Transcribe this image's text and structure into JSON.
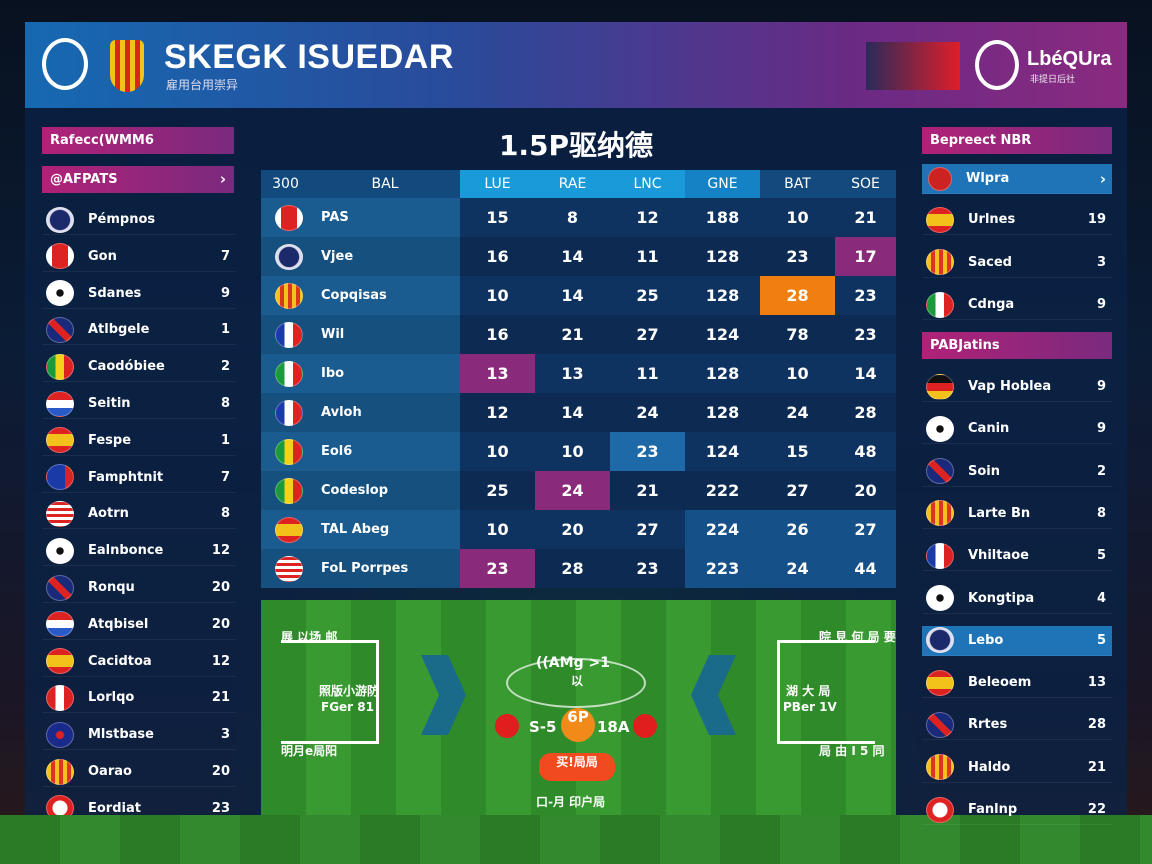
{
  "header": {
    "title": "SKEGK ISUEDAR",
    "subtitle": "雇用台用崇异",
    "league_logo_text": "LbéQUra",
    "league_logo_sub": "非提日后社"
  },
  "left": {
    "section_title": "Rafecc(WMM6",
    "menu_label": "@AFPATS",
    "items": [
      {
        "name": "Pémpnos",
        "count": "",
        "icon": "ball-blue"
      },
      {
        "name": "Gon",
        "count": "7",
        "icon": "crest-red"
      },
      {
        "name": "Sdanes",
        "count": "9",
        "icon": "ball"
      },
      {
        "name": "Atlbgele",
        "count": "1",
        "icon": "uk"
      },
      {
        "name": "Caodóbiee",
        "count": "2",
        "icon": "senegal"
      },
      {
        "name": "Seitin",
        "count": "8",
        "icon": "paraguay"
      },
      {
        "name": "Fespe",
        "count": "1",
        "icon": "spain"
      },
      {
        "name": "Famphtnit",
        "count": "7",
        "icon": "eu"
      },
      {
        "name": "Aotrn",
        "count": "8",
        "icon": "usa"
      },
      {
        "name": "Ealnbonce",
        "count": "12",
        "icon": "ball"
      },
      {
        "name": "Ronqu",
        "count": "20",
        "icon": "uk"
      },
      {
        "name": "Atqbisel",
        "count": "20",
        "icon": "paraguay"
      },
      {
        "name": "Cacidtoa",
        "count": "12",
        "icon": "spain"
      },
      {
        "name": "Lorlqo",
        "count": "21",
        "icon": "peru"
      },
      {
        "name": "Mlstbase",
        "count": "3",
        "icon": "crest-blue"
      },
      {
        "name": "Oarao",
        "count": "20",
        "icon": "crest-yellow"
      },
      {
        "name": "Eordiat",
        "count": "23",
        "icon": "crest-white"
      }
    ]
  },
  "center": {
    "title": "1.5P驱纳德",
    "columns": [
      "300",
      "BAL",
      "LUE",
      "RAE",
      "LNC",
      "GNE",
      "BAT",
      "SOE"
    ],
    "rows": [
      {
        "team": "PAS",
        "icon": "crest-red",
        "values": [
          "15",
          "8",
          "12",
          "188",
          "10",
          "21"
        ]
      },
      {
        "team": "Vjee",
        "icon": "ball-blue",
        "values": [
          "16",
          "14",
          "11",
          "128",
          "23",
          "17"
        ]
      },
      {
        "team": "Copqisas",
        "icon": "crest-yellow",
        "values": [
          "10",
          "14",
          "25",
          "128",
          "28",
          "23"
        ]
      },
      {
        "team": "Wil",
        "icon": "france",
        "values": [
          "16",
          "21",
          "27",
          "124",
          "78",
          "23"
        ]
      },
      {
        "team": "Ibo",
        "icon": "mexico",
        "values": [
          "13",
          "13",
          "11",
          "128",
          "10",
          "14"
        ]
      },
      {
        "team": "Avloh",
        "icon": "france",
        "values": [
          "12",
          "14",
          "24",
          "128",
          "24",
          "28"
        ]
      },
      {
        "team": "Eol6",
        "icon": "senegal",
        "values": [
          "10",
          "10",
          "23",
          "124",
          "15",
          "48"
        ]
      },
      {
        "team": "Codeslop",
        "icon": "senegal",
        "values": [
          "25",
          "24",
          "21",
          "222",
          "27",
          "20"
        ]
      },
      {
        "team": "TAL Abeg",
        "icon": "spain",
        "values": [
          "10",
          "20",
          "27",
          "224",
          "26",
          "27"
        ]
      },
      {
        "team": "FoL Porrpes",
        "icon": "usa",
        "values": [
          "23",
          "28",
          "23",
          "223",
          "24",
          "44"
        ]
      }
    ],
    "highlights": [
      [
        1,
        5,
        "mag"
      ],
      [
        2,
        4,
        "org"
      ],
      [
        4,
        0,
        "mag"
      ],
      [
        6,
        2,
        "blu"
      ],
      [
        7,
        1,
        "mag"
      ],
      [
        9,
        0,
        "mag"
      ]
    ],
    "pitch": {
      "tl": "展 以场 邮",
      "tl2": "照版小游防",
      "tl3": "FGer 81",
      "bl": "明月e局阳",
      "score_top": "((AMg >1",
      "score_top2": "以",
      "score_left": "S-5",
      "score_mid": "6P",
      "score_right": "18A",
      "button": "买!局局",
      "bottom": "口-月 印户局",
      "tr": "院 見 何 局 要",
      "tr2": "湖 大 局",
      "tr3": "PBer 1V",
      "br": "局 由 I 5 同"
    }
  },
  "right": {
    "section_title": "Bepreect NBR",
    "selected": "Wlpra",
    "items1": [
      {
        "name": "Urlnes",
        "count": "19",
        "icon": "spain"
      },
      {
        "name": "Saced",
        "count": "3",
        "icon": "crest-yellow"
      },
      {
        "name": "Cdnga",
        "count": "9",
        "icon": "mexico"
      }
    ],
    "section2_title": "PABJatins",
    "items2": [
      {
        "name": "Vap Hoblea",
        "count": "9",
        "icon": "germany"
      },
      {
        "name": "Canin",
        "count": "9",
        "icon": "ball"
      },
      {
        "name": "Soin",
        "count": "2",
        "icon": "uk"
      },
      {
        "name": "Larte Bn",
        "count": "8",
        "icon": "crest-yellow"
      },
      {
        "name": "Vhiltaoe",
        "count": "5",
        "icon": "france"
      },
      {
        "name": "Kongtipa",
        "count": "4",
        "icon": "ball"
      },
      {
        "name": "Lebo",
        "count": "5",
        "icon": "ball-blue",
        "selected": true
      },
      {
        "name": "Beleoem",
        "count": "13",
        "icon": "spain"
      },
      {
        "name": "Rrtes",
        "count": "28",
        "icon": "uk"
      },
      {
        "name": "Haldo",
        "count": "21",
        "icon": "crest-yellow"
      },
      {
        "name": "Fanlnp",
        "count": "22",
        "icon": "crest-white"
      }
    ]
  },
  "colors": {
    "accent_magenta": "#a0237a",
    "accent_blue": "#1a9ad8",
    "highlight_orange": "#f07e10"
  }
}
